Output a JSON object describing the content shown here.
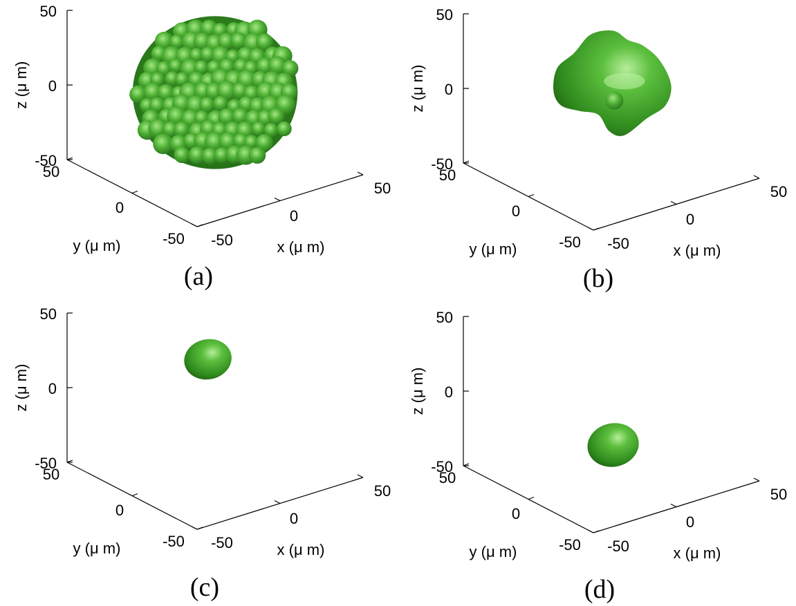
{
  "chart_data": [
    {
      "type": "scatter",
      "caption": "(a)",
      "xlabel": "x (μ m)",
      "ylabel": "y (μ m)",
      "zlabel": "z (μ m)",
      "xlim": [
        -50,
        50
      ],
      "ylim": [
        -50,
        50
      ],
      "zlim": [
        -50,
        50
      ],
      "xticks": [
        "-50",
        "0",
        "50"
      ],
      "yticks": [
        "-50",
        "0",
        "50"
      ],
      "zticks": [
        "-50",
        "0",
        "50"
      ],
      "series": [
        {
          "object": "cluster",
          "color": "#3e9a24",
          "center": {
            "x": 0,
            "y": 0,
            "z": 0
          },
          "radius": 40
        }
      ],
      "grid": false
    },
    {
      "type": "scatter",
      "caption": "(b)",
      "xlabel": "x (μ m)",
      "ylabel": "y (μ m)",
      "zlabel": "z (μ m)",
      "xlim": [
        -50,
        50
      ],
      "ylim": [
        -50,
        50
      ],
      "zlim": [
        -50,
        50
      ],
      "xticks": [
        "-50",
        "0",
        "50"
      ],
      "yticks": [
        "-50",
        "0",
        "50"
      ],
      "zticks": [
        "-50",
        "0",
        "50"
      ],
      "series": [
        {
          "object": "irregular",
          "color": "#3e9a24",
          "center": {
            "x": 0,
            "y": 0,
            "z": 5
          },
          "radius": 25
        }
      ],
      "grid": false
    },
    {
      "type": "scatter",
      "caption": "(c)",
      "xlabel": "x (μ m)",
      "ylabel": "y (μ m)",
      "zlabel": "z (μ m)",
      "xlim": [
        -50,
        50
      ],
      "ylim": [
        -50,
        50
      ],
      "zlim": [
        -50,
        50
      ],
      "xticks": [
        "-50",
        "0",
        "50"
      ],
      "yticks": [
        "-50",
        "0",
        "50"
      ],
      "zticks": [
        "-50",
        "0",
        "50"
      ],
      "series": [
        {
          "object": "blob",
          "color": "#3e9a24",
          "center": {
            "x": -20,
            "y": -20,
            "z": 40
          },
          "radius": 12
        }
      ],
      "grid": false
    },
    {
      "type": "scatter",
      "caption": "(d)",
      "xlabel": "x (μ m)",
      "ylabel": "y (μ m)",
      "zlabel": "z (μ m)",
      "xlim": [
        -50,
        50
      ],
      "ylim": [
        -50,
        50
      ],
      "zlim": [
        -50,
        50
      ],
      "xticks": [
        "-50",
        "0",
        "50"
      ],
      "yticks": [
        "-50",
        "0",
        "50"
      ],
      "zticks": [
        "-50",
        "0",
        "50"
      ],
      "series": [
        {
          "object": "blob",
          "color": "#3e9a24",
          "center": {
            "x": 5,
            "y": 5,
            "z": -35
          },
          "radius": 13
        }
      ],
      "grid": false
    }
  ]
}
